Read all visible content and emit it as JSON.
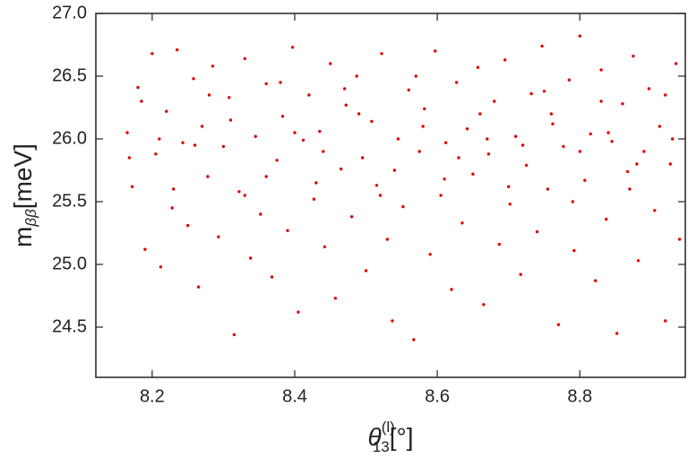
{
  "chart_data": {
    "type": "scatter",
    "x_label": {
      "main": "θ",
      "sub": "13",
      "sup": "(l)",
      "unit": "[°]"
    },
    "y_label": {
      "main": "m",
      "sub": "ββ",
      "unit": "[meV]"
    },
    "xlim": [
      8.121,
      8.948
    ],
    "ylim": [
      24.1,
      27.0
    ],
    "xticks": [
      8.2,
      8.4,
      8.6,
      8.8
    ],
    "yticks": [
      24.5,
      {
        "value": 25,
        "label": "25.0"
      },
      25.5,
      {
        "value": 26,
        "label": "26.0"
      },
      26.5,
      {
        "value": 27,
        "label": "27.0"
      }
    ],
    "series": [
      {
        "color": "#e00000",
        "x": [
          8.165,
          8.172,
          8.18,
          8.19,
          8.2,
          8.205,
          8.212,
          8.22,
          8.228,
          8.235,
          8.243,
          8.25,
          8.258,
          8.265,
          8.27,
          8.278,
          8.285,
          8.293,
          8.3,
          8.308,
          8.315,
          8.322,
          8.33,
          8.338,
          8.345,
          8.352,
          8.36,
          8.368,
          8.375,
          8.383,
          8.39,
          8.397,
          8.405,
          8.412,
          8.42,
          8.427,
          8.435,
          8.442,
          8.45,
          8.457,
          8.465,
          8.472,
          8.48,
          8.487,
          8.495,
          8.5,
          8.508,
          8.515,
          8.522,
          8.53,
          8.537,
          8.545,
          8.552,
          8.56,
          8.567,
          8.575,
          8.582,
          8.59,
          8.597,
          8.605,
          8.612,
          8.62,
          8.627,
          8.635,
          8.642,
          8.65,
          8.657,
          8.665,
          8.672,
          8.68,
          8.687,
          8.695,
          8.702,
          8.71,
          8.717,
          8.725,
          8.732,
          8.74,
          8.747,
          8.755,
          8.762,
          8.77,
          8.777,
          8.785,
          8.792,
          8.8,
          8.807,
          8.815,
          8.822,
          8.83,
          8.837,
          8.845,
          8.852,
          8.86,
          8.867,
          8.875,
          8.882,
          8.89,
          8.897,
          8.905,
          8.912,
          8.92,
          8.927,
          8.935,
          8.94,
          8.168,
          8.21,
          8.26,
          8.31,
          8.36,
          8.4,
          8.44,
          8.49,
          8.54,
          8.58,
          8.63,
          8.67,
          8.72,
          8.76,
          8.8,
          8.84,
          8.88,
          8.93,
          8.185,
          8.23,
          8.28,
          8.33,
          8.38,
          8.43,
          8.47,
          8.52,
          8.57,
          8.61,
          8.66,
          8.7,
          8.75,
          8.79,
          8.83,
          8.87,
          8.92
        ],
        "values": [
          26.05,
          25.62,
          26.41,
          25.12,
          26.68,
          25.88,
          24.98,
          26.22,
          25.45,
          26.71,
          25.97,
          25.31,
          26.48,
          24.82,
          26.1,
          25.7,
          26.58,
          25.22,
          25.94,
          26.33,
          24.44,
          25.58,
          26.64,
          25.05,
          26.02,
          25.4,
          26.44,
          24.9,
          25.83,
          26.18,
          25.27,
          26.73,
          24.62,
          25.99,
          26.35,
          25.52,
          26.06,
          25.14,
          26.6,
          24.73,
          25.76,
          26.27,
          25.38,
          26.5,
          25.85,
          24.95,
          26.14,
          25.63,
          26.68,
          25.2,
          24.55,
          26.0,
          25.46,
          26.39,
          24.4,
          25.9,
          26.24,
          25.08,
          26.7,
          25.55,
          25.97,
          24.8,
          26.45,
          25.33,
          26.08,
          25.72,
          26.57,
          24.68,
          25.88,
          26.3,
          25.16,
          26.63,
          25.48,
          26.02,
          24.92,
          25.79,
          26.36,
          25.26,
          26.74,
          25.6,
          26.12,
          24.52,
          25.94,
          26.47,
          25.11,
          26.82,
          25.67,
          26.04,
          24.87,
          26.55,
          25.36,
          25.98,
          24.45,
          26.28,
          25.74,
          26.66,
          25.03,
          25.9,
          26.4,
          25.43,
          26.1,
          24.55,
          25.8,
          26.6,
          25.2,
          25.85,
          26.0,
          25.95,
          26.15,
          25.7,
          26.05,
          25.9,
          26.2,
          25.75,
          26.1,
          25.85,
          26.0,
          25.95,
          26.2,
          25.9,
          26.05,
          25.8,
          26.0,
          26.3,
          25.6,
          26.35,
          25.55,
          26.45,
          25.65,
          26.4,
          25.55,
          26.5,
          25.68,
          26.2,
          25.62,
          26.38,
          25.5,
          26.3,
          25.6,
          26.35
        ]
      }
    ]
  }
}
